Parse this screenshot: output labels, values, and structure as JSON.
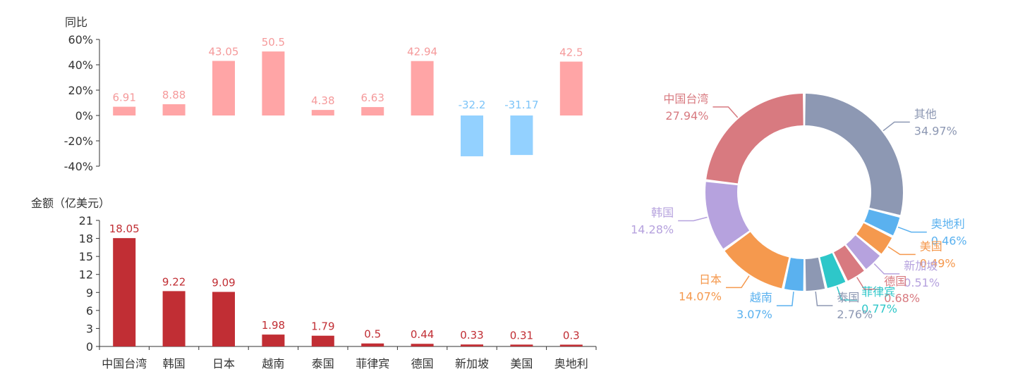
{
  "chart_data": [
    {
      "type": "bar",
      "ylabel": "同比",
      "categories": [
        "中国台湾",
        "韩国",
        "日本",
        "越南",
        "泰国",
        "菲律宾",
        "德国",
        "新加坡",
        "美国",
        "奥地利"
      ],
      "values": [
        6.91,
        8.88,
        43.05,
        50.5,
        4.38,
        6.63,
        42.94,
        -32.2,
        -31.17,
        42.5
      ],
      "data_labels": [
        "6.91",
        "8.88",
        "43.05",
        "50.5",
        "4.38",
        "6.63",
        "42.94",
        "-32.2",
        "-31.17",
        "42.5"
      ],
      "ylim": [
        -40,
        60
      ],
      "yticks": [
        -40,
        -20,
        0,
        20,
        40,
        60
      ],
      "ytick_labels": [
        "-40%",
        "-20%",
        "0%",
        "20%",
        "40%",
        "60%"
      ],
      "colors": {
        "positive": "#ffa5a6",
        "negative": "#93d1ff",
        "positive_label": "#f59a9b",
        "negative_label": "#7cc4f8"
      }
    },
    {
      "type": "bar",
      "ylabel": "金额（亿美元）",
      "categories": [
        "中国台湾",
        "韩国",
        "日本",
        "越南",
        "泰国",
        "菲律宾",
        "德国",
        "新加坡",
        "美国",
        "奥地利"
      ],
      "values": [
        18.05,
        9.22,
        9.09,
        1.98,
        1.79,
        0.5,
        0.44,
        0.33,
        0.31,
        0.3
      ],
      "data_labels": [
        "18.05",
        "9.22",
        "9.09",
        "1.98",
        "1.79",
        "0.5",
        "0.44",
        "0.33",
        "0.31",
        "0.3"
      ],
      "ylim": [
        0,
        21
      ],
      "yticks": [
        0,
        3,
        6,
        9,
        12,
        15,
        18,
        21
      ],
      "ytick_labels": [
        "0",
        "3",
        "6",
        "9",
        "12",
        "15",
        "18",
        "21"
      ],
      "colors": {
        "bar": "#c12e34",
        "label": "#c12e34"
      }
    },
    {
      "type": "pie",
      "donut": true,
      "slices": [
        {
          "name": "其他",
          "value": 34.97,
          "label": "34.97%",
          "color": "#8d98b3"
        },
        {
          "name": "奥地利",
          "value": 0.46,
          "label": "0.46%",
          "color": "#5ab1ef"
        },
        {
          "name": "美国",
          "value": 0.49,
          "label": "0.49%",
          "color": "#f5994e"
        },
        {
          "name": "新加坡",
          "value": 0.51,
          "label": "0.51%",
          "color": "#b6a2de"
        },
        {
          "name": "德国",
          "value": 0.68,
          "label": "0.68%",
          "color": "#d87a80"
        },
        {
          "name": "菲律宾",
          "value": 0.77,
          "label": "0.77%",
          "color": "#2ec7c9"
        },
        {
          "name": "泰国",
          "value": 2.76,
          "label": "2.76%",
          "color": "#8d98b3"
        },
        {
          "name": "越南",
          "value": 3.07,
          "label": "3.07%",
          "color": "#5ab1ef"
        },
        {
          "name": "日本",
          "value": 14.07,
          "label": "14.07%",
          "color": "#f5994e"
        },
        {
          "name": "韩国",
          "value": 14.28,
          "label": "14.28%",
          "color": "#b6a2de"
        },
        {
          "name": "中国台湾",
          "value": 27.94,
          "label": "27.94%",
          "color": "#d87a80"
        }
      ]
    }
  ]
}
